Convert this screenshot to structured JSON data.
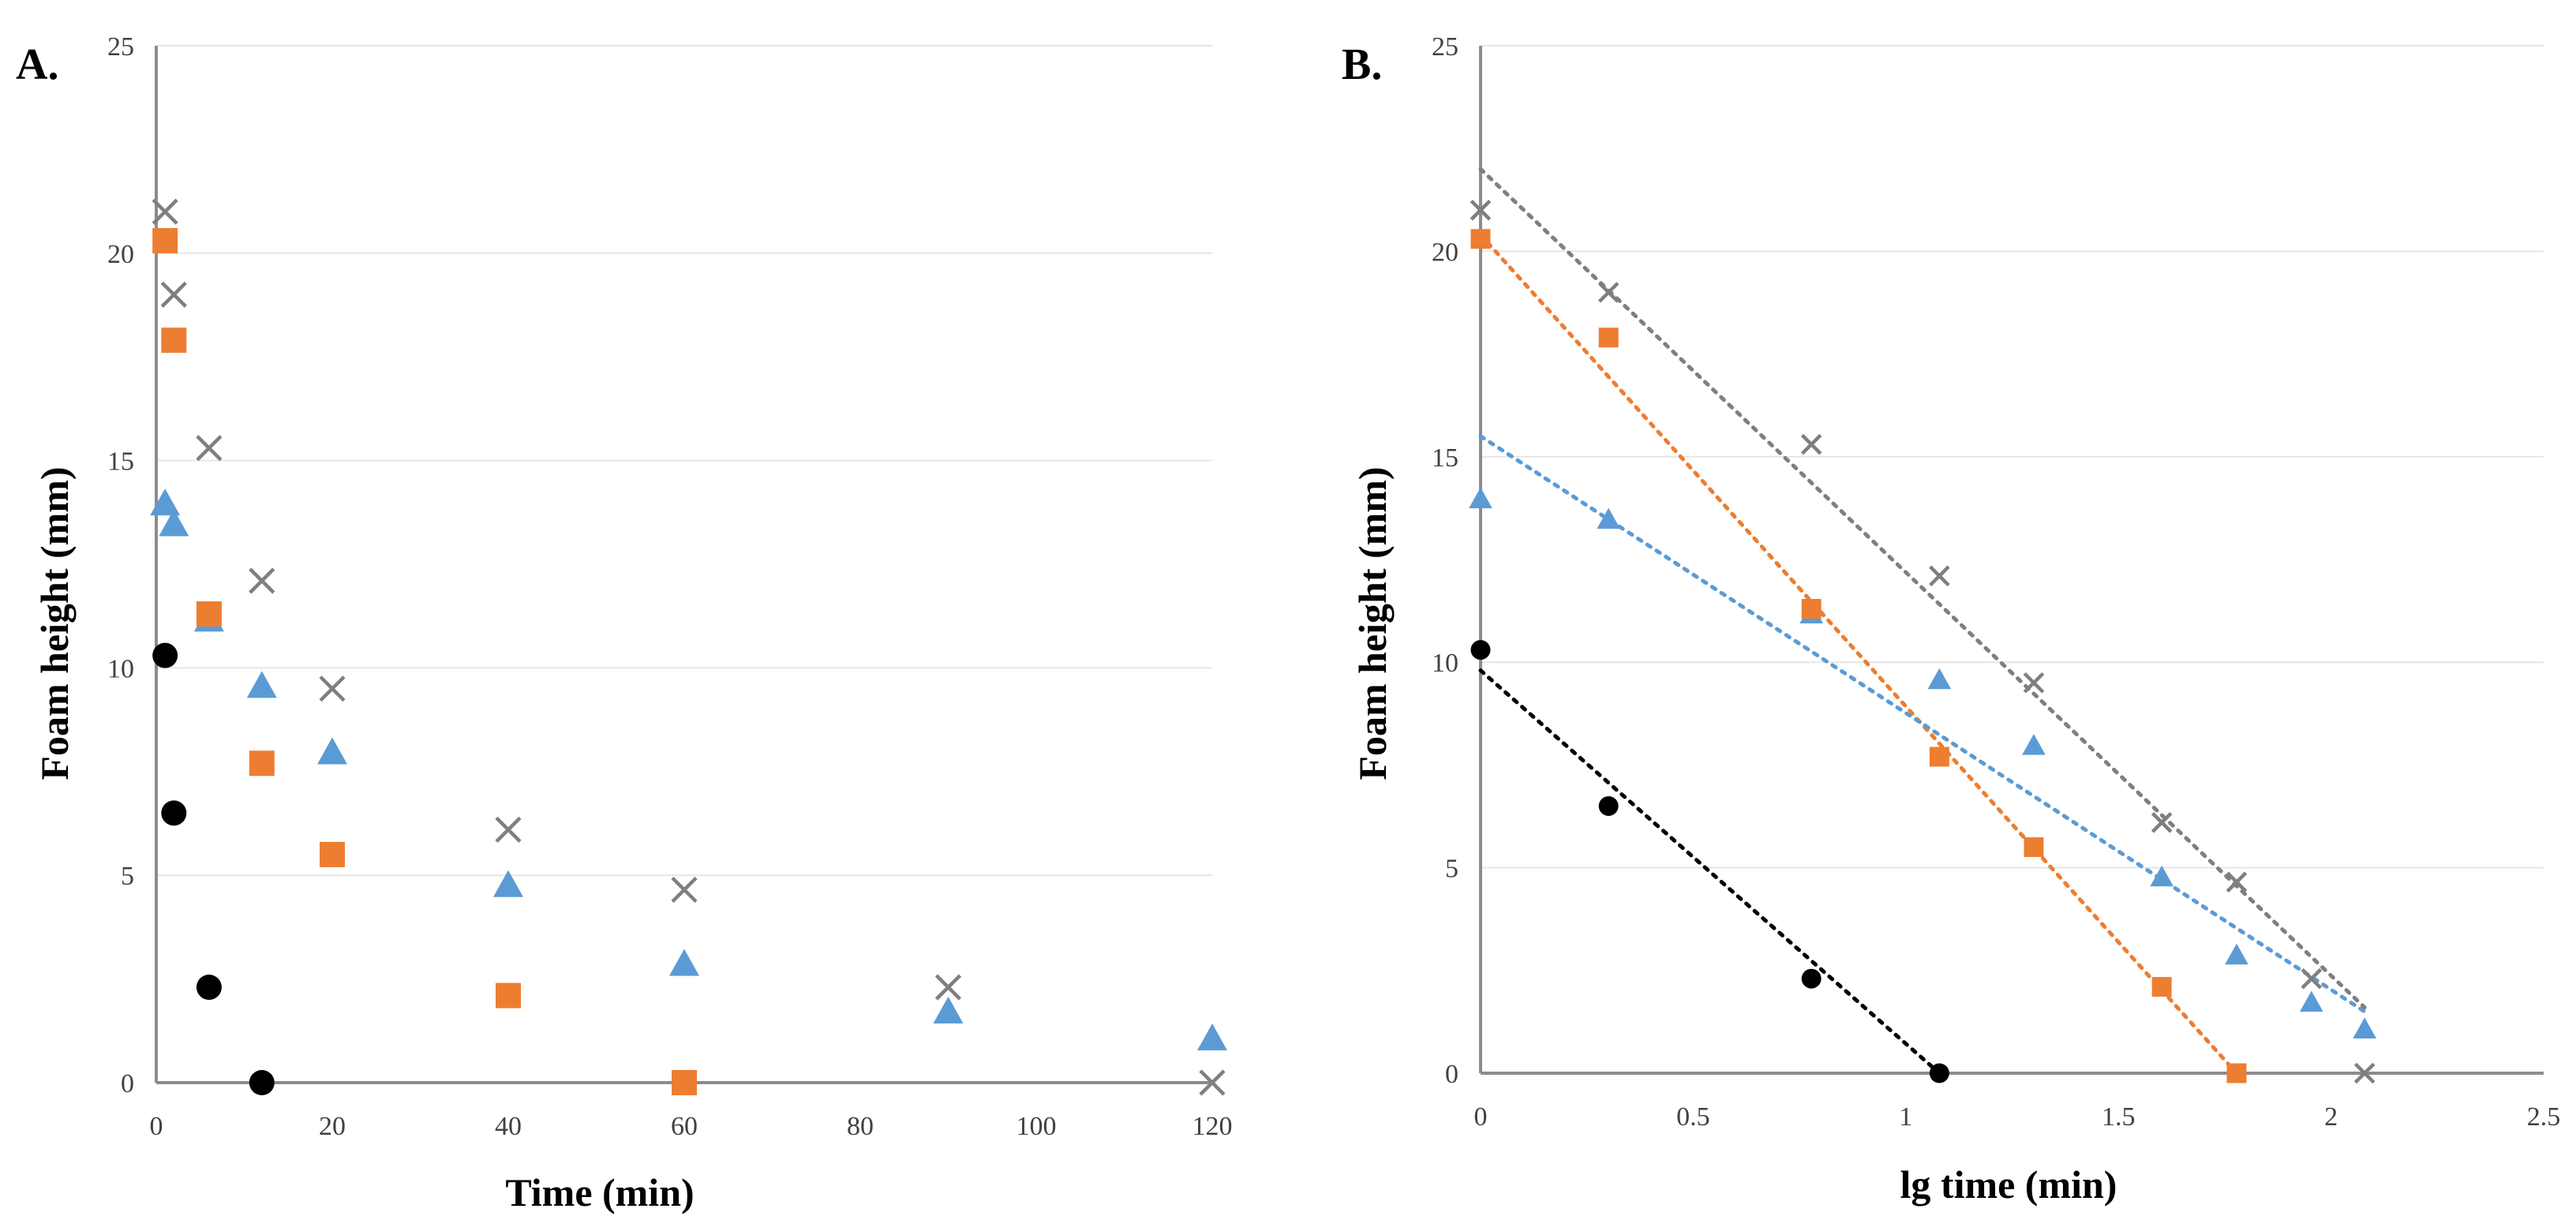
{
  "colors": {
    "black": "#000000",
    "orange": "#ED7D31",
    "blue": "#5B9BD5",
    "gray": "#7F7F7F"
  },
  "chart_data": [
    {
      "type": "scatter",
      "panel_label": "A.",
      "title": "",
      "xlabel": "Time (min)",
      "ylabel": "Foam height (mm)",
      "xlim": [
        0,
        120
      ],
      "ylim": [
        0,
        25
      ],
      "xticks": [
        "0",
        "20",
        "40",
        "60",
        "80",
        "100",
        "120"
      ],
      "yticks": [
        "0",
        "5",
        "10",
        "15",
        "20",
        "25"
      ],
      "grid": "horizontal",
      "series": [
        {
          "name": "circle-series",
          "marker": "circle",
          "color": "#000000",
          "x": [
            1,
            2,
            6,
            12
          ],
          "y": [
            10.3,
            6.5,
            2.3,
            0
          ]
        },
        {
          "name": "square-series",
          "marker": "square",
          "color": "#ED7D31",
          "x": [
            1,
            2,
            6,
            12,
            20,
            40,
            60
          ],
          "y": [
            20.3,
            17.9,
            11.3,
            7.7,
            5.5,
            2.1,
            0
          ]
        },
        {
          "name": "triangle-series",
          "marker": "triangle",
          "color": "#5B9BD5",
          "x": [
            1,
            2,
            6,
            12,
            20,
            40,
            60,
            90,
            120
          ],
          "y": [
            14.0,
            13.5,
            11.2,
            9.6,
            8.0,
            4.8,
            2.9,
            1.75,
            1.1
          ]
        },
        {
          "name": "cross-series",
          "marker": "cross",
          "color": "#7F7F7F",
          "x": [
            1,
            2,
            6,
            12,
            20,
            40,
            60,
            90,
            120
          ],
          "y": [
            21.0,
            19.0,
            15.3,
            12.1,
            9.5,
            6.1,
            4.65,
            2.3,
            0
          ]
        }
      ]
    },
    {
      "type": "scatter",
      "panel_label": "B.",
      "title": "",
      "xlabel": "lg time (min)",
      "ylabel": "Foam height (mm)",
      "xlim": [
        0,
        2.5
      ],
      "ylim": [
        0,
        25
      ],
      "xticks": [
        "0",
        "0.5",
        "1",
        "1.5",
        "2",
        "2.5"
      ],
      "yticks": [
        "0",
        "5",
        "10",
        "15",
        "20",
        "25"
      ],
      "grid": "horizontal",
      "series": [
        {
          "name": "circle-series",
          "marker": "circle",
          "color": "#000000",
          "x": [
            0,
            0.301,
            0.778,
            1.079
          ],
          "y": [
            10.3,
            6.5,
            2.3,
            0
          ],
          "trendline": {
            "x": [
              0,
              1.079
            ],
            "y": [
              9.8,
              0
            ]
          }
        },
        {
          "name": "square-series",
          "marker": "square",
          "color": "#ED7D31",
          "x": [
            0,
            0.301,
            0.778,
            1.079,
            1.301,
            1.602,
            1.778
          ],
          "y": [
            20.3,
            17.9,
            11.3,
            7.7,
            5.5,
            2.1,
            0
          ],
          "trendline": {
            "x": [
              0,
              1.778
            ],
            "y": [
              20.4,
              0
            ]
          }
        },
        {
          "name": "triangle-series",
          "marker": "triangle",
          "color": "#5B9BD5",
          "x": [
            0,
            0.301,
            0.778,
            1.079,
            1.301,
            1.602,
            1.778,
            1.954,
            2.079
          ],
          "y": [
            14.0,
            13.5,
            11.2,
            9.6,
            8.0,
            4.8,
            2.9,
            1.75,
            1.1
          ],
          "trendline": {
            "x": [
              0,
              2.079
            ],
            "y": [
              15.5,
              1.5
            ]
          }
        },
        {
          "name": "cross-series",
          "marker": "cross",
          "color": "#7F7F7F",
          "x": [
            0,
            0.301,
            0.778,
            1.079,
            1.301,
            1.602,
            1.778,
            1.954,
            2.079
          ],
          "y": [
            21.0,
            19.0,
            15.3,
            12.1,
            9.5,
            6.1,
            4.65,
            2.3,
            0
          ],
          "trendline": {
            "x": [
              0,
              2.079
            ],
            "y": [
              22.0,
              1.6
            ]
          }
        }
      ]
    }
  ]
}
